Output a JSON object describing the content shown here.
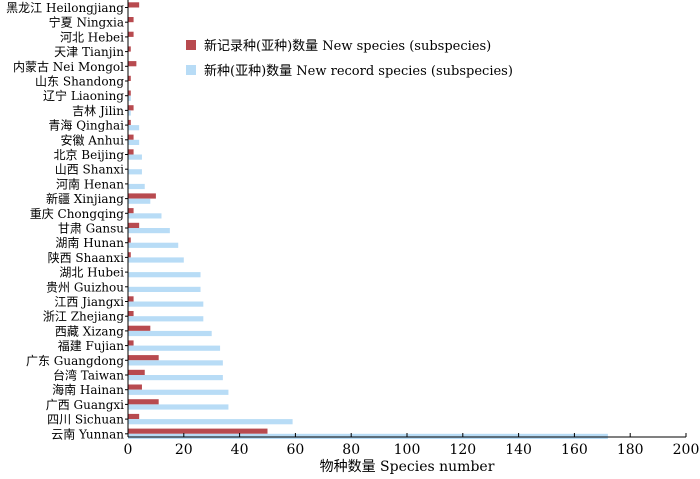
{
  "chart_data": {
    "type": "bar",
    "orientation": "horizontal",
    "xlabel": "物种数量 Species number",
    "ylabel": "",
    "xlim": [
      0,
      200
    ],
    "xticks": [
      0,
      20,
      40,
      60,
      80,
      100,
      120,
      140,
      160,
      180,
      200
    ],
    "grid": false,
    "legend_position": "top-right",
    "categories": [
      "黑龙江 Heilongjiang",
      "宁夏 Ningxia",
      "河北 Hebei",
      "天津 Tianjin",
      "内蒙古 Nei Mongol",
      "山东 Shandong",
      "辽宁 Liaoning",
      "吉林 Jilin",
      "青海 Qinghai",
      "安徽 Anhui",
      "北京 Beijing",
      "山西 Shanxi",
      "河南 Henan",
      "新疆 Xinjiang",
      "重庆 Chongqing",
      "甘肃 Gansu",
      "湖南 Hunan",
      "陕西 Shaanxi",
      "湖北 Hubei",
      "贵州 Guizhou",
      "江西 Jiangxi",
      "浙江 Zhejiang",
      "西藏 Xizang",
      "福建 Fujian",
      "广东 Guangdong",
      "台湾 Taiwan",
      "海南 Hainan",
      "广西 Guangxi",
      "四川 Sichuan",
      "云南 Yunnan"
    ],
    "series": [
      {
        "name": "新记录种(亚种)数量 New species (subspecies)",
        "color": "#b84a4f",
        "values": [
          4,
          2,
          2,
          1,
          3,
          1,
          1,
          2,
          1,
          2,
          2,
          0,
          0,
          10,
          2,
          4,
          1,
          1,
          0,
          0,
          2,
          2,
          8,
          2,
          11,
          6,
          5,
          11,
          4,
          50
        ]
      },
      {
        "name": "新种(亚种)数量 New record species (subspecies)",
        "color": "#b8dcf6",
        "values": [
          0,
          0,
          0,
          0,
          0,
          0,
          1,
          1,
          4,
          4,
          5,
          5,
          6,
          8,
          12,
          15,
          18,
          20,
          26,
          26,
          27,
          27,
          30,
          33,
          34,
          34,
          36,
          36,
          59,
          172
        ]
      }
    ]
  }
}
